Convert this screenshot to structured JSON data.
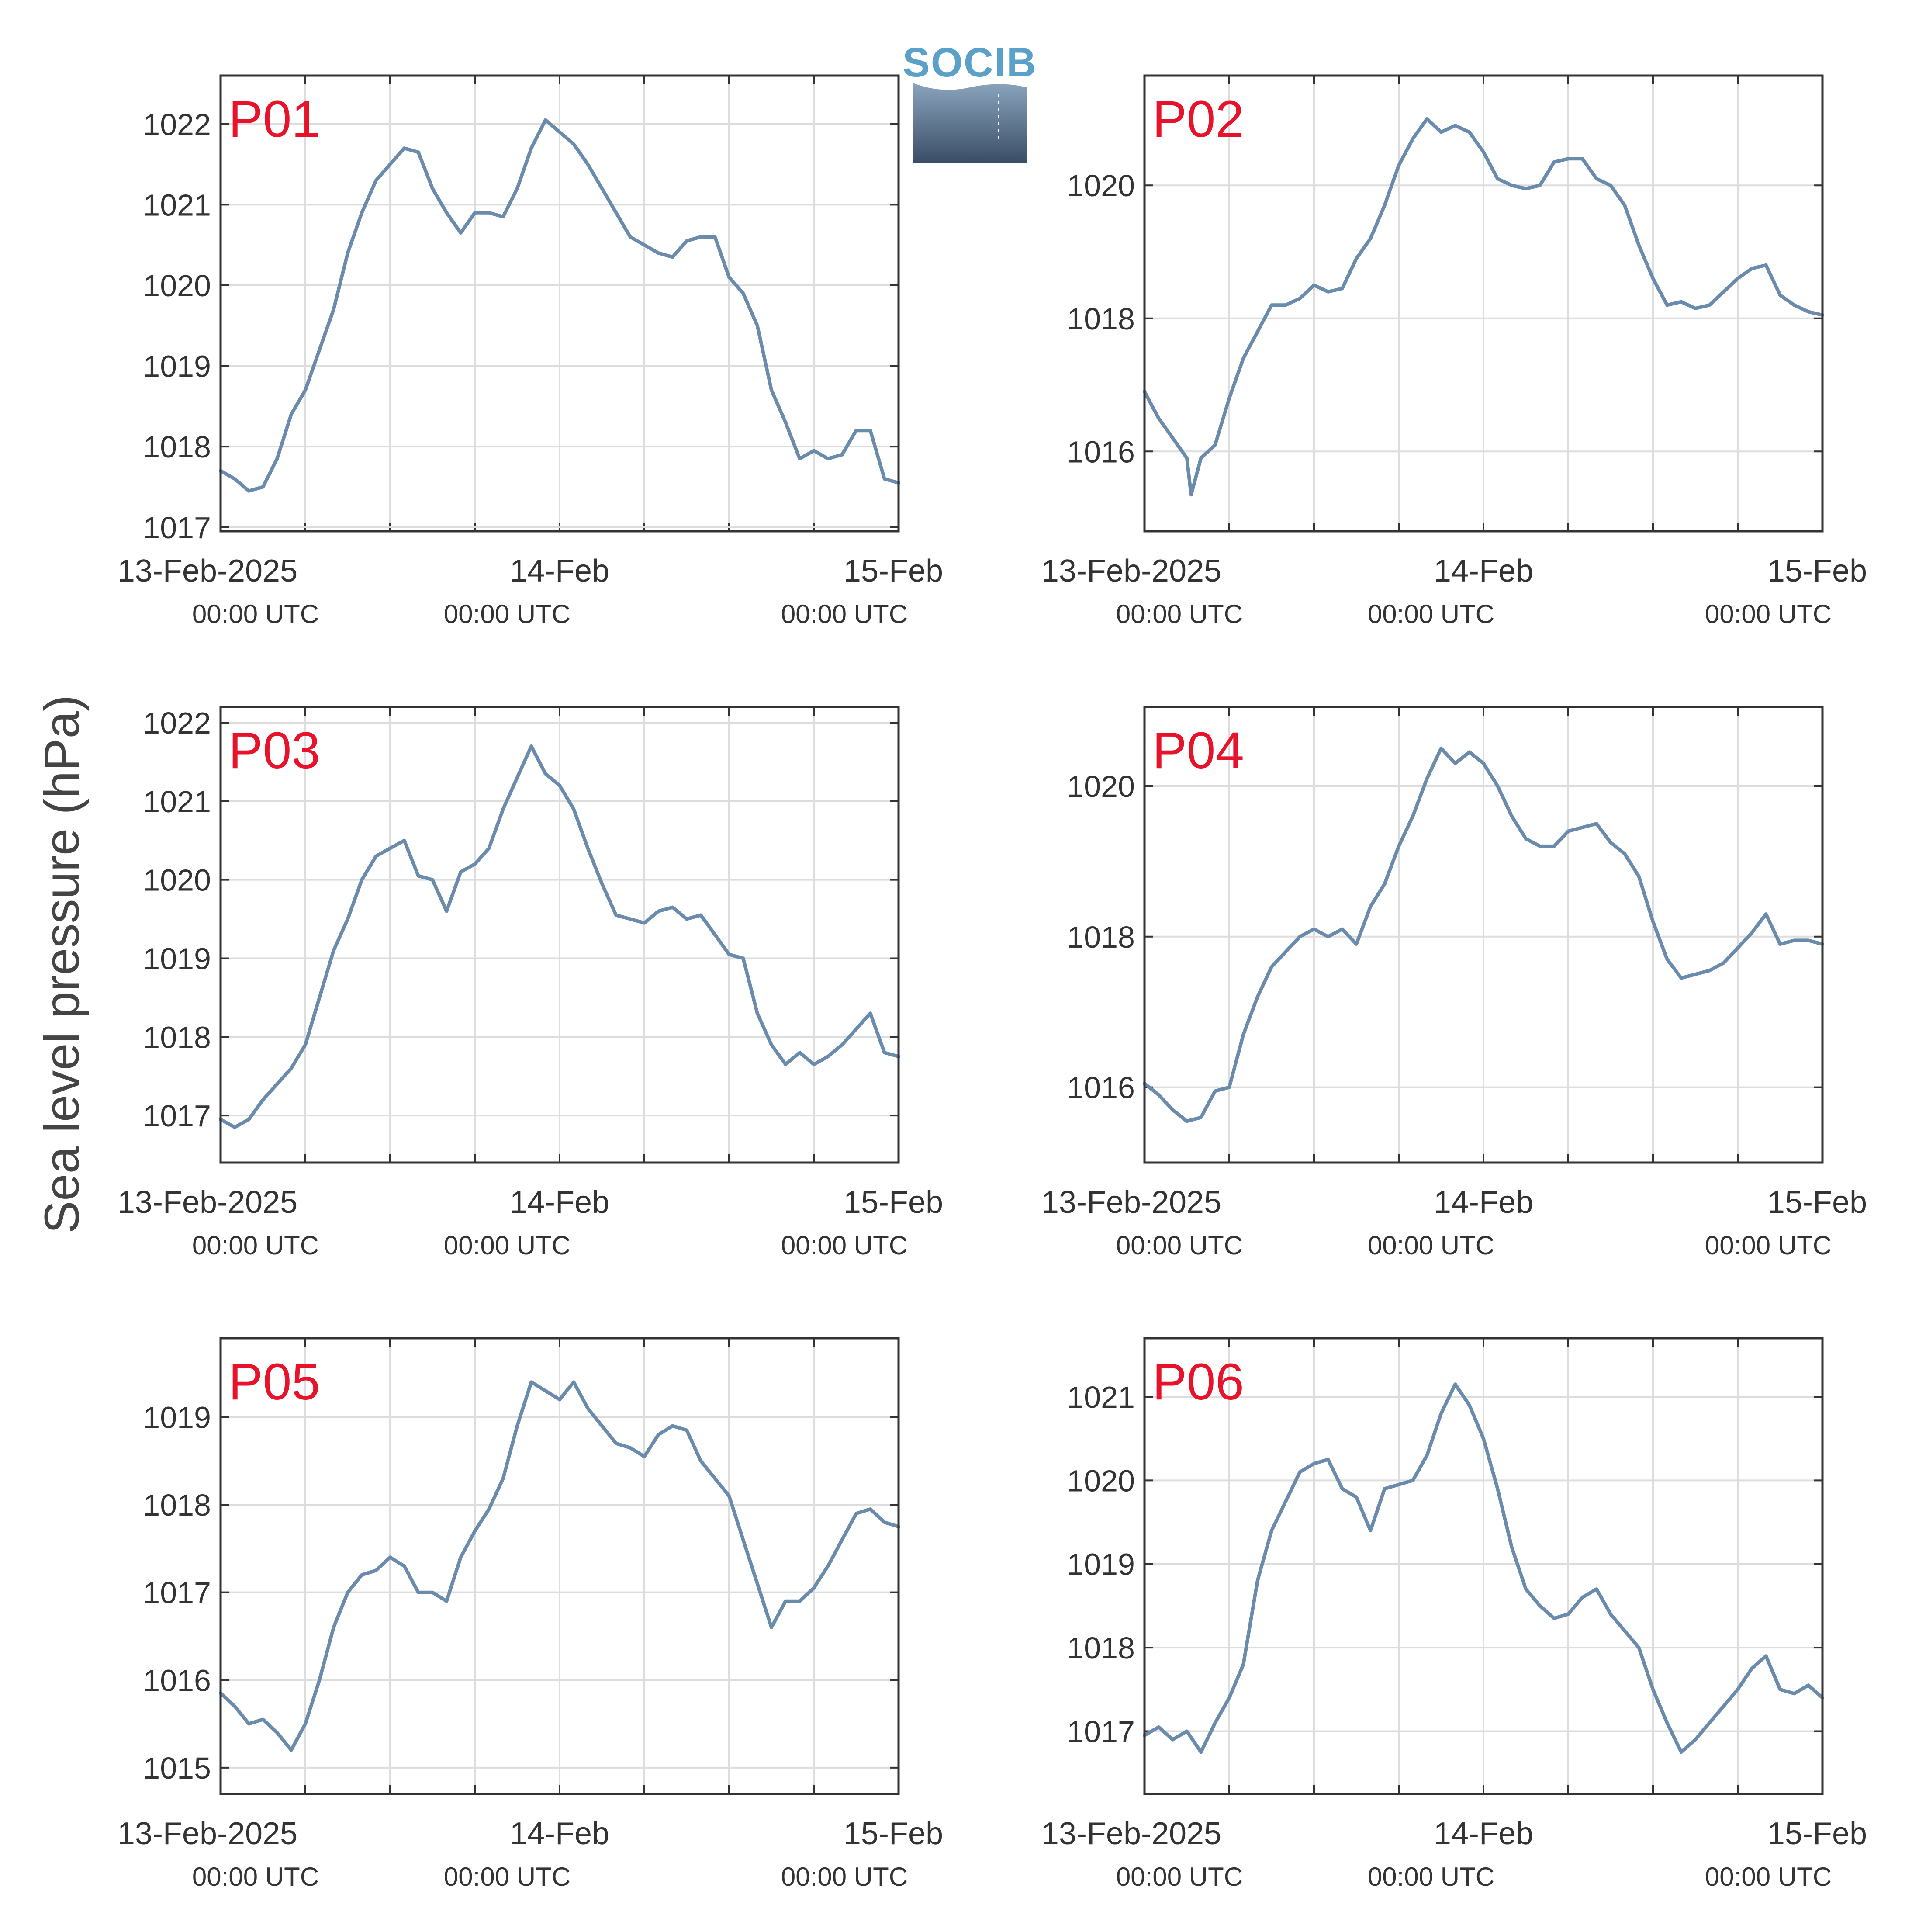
{
  "figure": {
    "ylabel": "Sea level pressure (hPa)",
    "logo_text": "SOCIB",
    "line_color": "#6a8bab",
    "label_color": "#e8132b",
    "grid_color": "#dddddd"
  },
  "chart_data": [
    {
      "type": "line",
      "title": "P01",
      "x_ticks": [
        {
          "date": "13-Feb-2025",
          "time": "00:00 UTC"
        },
        {
          "date": "14-Feb",
          "time": "00:00 UTC"
        },
        {
          "date": "15-Feb",
          "time": "00:00 UTC"
        }
      ],
      "xlim": [
        0,
        48
      ],
      "ylim": [
        1016.95,
        1022.6
      ],
      "yticks": [
        1017,
        1018,
        1019,
        1020,
        1021,
        1022
      ],
      "grid": true,
      "series": [
        {
          "x": [
            0,
            1,
            2,
            3,
            4,
            5,
            6,
            7,
            8,
            9,
            10,
            11,
            12,
            13,
            14,
            15,
            16,
            17,
            18,
            19,
            20,
            21,
            22,
            23,
            24,
            25,
            26,
            27,
            28,
            29,
            30,
            31,
            32,
            33,
            34,
            35,
            36,
            37,
            38,
            39,
            40,
            41,
            42,
            43,
            44,
            45,
            46,
            47,
            48
          ],
          "values": [
            1017.7,
            1017.6,
            1017.45,
            1017.5,
            1017.85,
            1018.4,
            1018.7,
            1019.2,
            1019.7,
            1020.4,
            1020.9,
            1021.3,
            1021.5,
            1021.7,
            1021.65,
            1021.2,
            1020.9,
            1020.65,
            1020.9,
            1020.9,
            1020.85,
            1021.2,
            1021.7,
            1022.05,
            1021.9,
            1021.75,
            1021.5,
            1021.2,
            1020.9,
            1020.6,
            1020.5,
            1020.4,
            1020.35,
            1020.55,
            1020.6,
            1020.6,
            1020.1,
            1019.9,
            1019.5,
            1018.7,
            1018.3,
            1017.85,
            1017.95,
            1017.85,
            1017.9,
            1018.2,
            1018.2,
            1017.6,
            1017.55
          ]
        }
      ]
    },
    {
      "type": "line",
      "title": "P02",
      "x_ticks": [
        {
          "date": "13-Feb-2025",
          "time": "00:00 UTC"
        },
        {
          "date": "14-Feb",
          "time": "00:00 UTC"
        },
        {
          "date": "15-Feb",
          "time": "00:00 UTC"
        }
      ],
      "xlim": [
        0,
        48
      ],
      "ylim": [
        1014.8,
        1021.65
      ],
      "yticks": [
        1016,
        1018,
        1020
      ],
      "grid": true,
      "series": [
        {
          "x": [
            0,
            1,
            2,
            3,
            3.3,
            4,
            5,
            6,
            7,
            8,
            9,
            10,
            11,
            12,
            13,
            14,
            15,
            16,
            17,
            18,
            19,
            20,
            21,
            22,
            23,
            24,
            25,
            26,
            27,
            28,
            29,
            30,
            31,
            32,
            33,
            34,
            35,
            36,
            37,
            38,
            39,
            40,
            41,
            42,
            43,
            44,
            45,
            46,
            47,
            48
          ],
          "values": [
            1016.9,
            1016.5,
            1016.2,
            1015.9,
            1015.35,
            1015.9,
            1016.1,
            1016.8,
            1017.4,
            1017.8,
            1018.2,
            1018.2,
            1018.3,
            1018.5,
            1018.4,
            1018.45,
            1018.9,
            1019.2,
            1019.7,
            1020.3,
            1020.7,
            1021.0,
            1020.8,
            1020.9,
            1020.8,
            1020.5,
            1020.1,
            1020.0,
            1019.95,
            1020.0,
            1020.35,
            1020.4,
            1020.4,
            1020.1,
            1020.0,
            1019.7,
            1019.1,
            1018.6,
            1018.2,
            1018.25,
            1018.15,
            1018.2,
            1018.4,
            1018.6,
            1018.75,
            1018.8,
            1018.35,
            1018.2,
            1018.1,
            1018.05
          ]
        }
      ]
    },
    {
      "type": "line",
      "title": "P03",
      "x_ticks": [
        {
          "date": "13-Feb-2025",
          "time": "00:00 UTC"
        },
        {
          "date": "14-Feb",
          "time": "00:00 UTC"
        },
        {
          "date": "15-Feb",
          "time": "00:00 UTC"
        }
      ],
      "xlim": [
        0,
        48
      ],
      "ylim": [
        1016.4,
        1022.2
      ],
      "yticks": [
        1017,
        1018,
        1019,
        1020,
        1021,
        1022
      ],
      "grid": true,
      "series": [
        {
          "x": [
            0,
            1,
            2,
            3,
            4,
            5,
            6,
            7,
            8,
            9,
            10,
            11,
            12,
            13,
            14,
            15,
            16,
            17,
            18,
            19,
            20,
            21,
            22,
            23,
            24,
            25,
            26,
            27,
            28,
            29,
            30,
            31,
            32,
            33,
            34,
            35,
            36,
            37,
            38,
            39,
            40,
            41,
            42,
            43,
            44,
            45,
            46,
            47,
            48
          ],
          "values": [
            1016.95,
            1016.85,
            1016.95,
            1017.2,
            1017.4,
            1017.6,
            1017.9,
            1018.5,
            1019.1,
            1019.5,
            1020.0,
            1020.3,
            1020.4,
            1020.5,
            1020.05,
            1020.0,
            1019.6,
            1020.1,
            1020.2,
            1020.4,
            1020.9,
            1021.3,
            1021.7,
            1021.35,
            1021.2,
            1020.9,
            1020.4,
            1019.95,
            1019.55,
            1019.5,
            1019.45,
            1019.6,
            1019.65,
            1019.5,
            1019.55,
            1019.3,
            1019.05,
            1019.0,
            1018.3,
            1017.9,
            1017.65,
            1017.8,
            1017.65,
            1017.75,
            1017.9,
            1018.1,
            1018.3,
            1017.8,
            1017.75
          ]
        }
      ]
    },
    {
      "type": "line",
      "title": "P04",
      "x_ticks": [
        {
          "date": "13-Feb-2025",
          "time": "00:00 UTC"
        },
        {
          "date": "14-Feb",
          "time": "00:00 UTC"
        },
        {
          "date": "15-Feb",
          "time": "00:00 UTC"
        }
      ],
      "xlim": [
        0,
        48
      ],
      "ylim": [
        1015.0,
        1021.05
      ],
      "yticks": [
        1016,
        1018,
        1020
      ],
      "grid": true,
      "series": [
        {
          "x": [
            0,
            1,
            2,
            3,
            4,
            5,
            6,
            7,
            8,
            9,
            10,
            11,
            12,
            13,
            14,
            15,
            16,
            17,
            18,
            19,
            20,
            21,
            22,
            23,
            24,
            25,
            26,
            27,
            28,
            29,
            30,
            31,
            32,
            33,
            34,
            35,
            36,
            37,
            38,
            39,
            40,
            41,
            42,
            43,
            44,
            45,
            46,
            47,
            48
          ],
          "values": [
            1016.05,
            1015.9,
            1015.7,
            1015.55,
            1015.6,
            1015.95,
            1016.0,
            1016.7,
            1017.2,
            1017.6,
            1017.8,
            1018.0,
            1018.1,
            1018.0,
            1018.1,
            1017.9,
            1018.4,
            1018.7,
            1019.2,
            1019.6,
            1020.1,
            1020.5,
            1020.3,
            1020.45,
            1020.3,
            1020.0,
            1019.6,
            1019.3,
            1019.2,
            1019.2,
            1019.4,
            1019.45,
            1019.5,
            1019.25,
            1019.1,
            1018.8,
            1018.2,
            1017.7,
            1017.45,
            1017.5,
            1017.55,
            1017.65,
            1017.85,
            1018.05,
            1018.3,
            1017.9,
            1017.95,
            1017.95,
            1017.9
          ]
        }
      ]
    },
    {
      "type": "line",
      "title": "P05",
      "x_ticks": [
        {
          "date": "13-Feb-2025",
          "time": "00:00 UTC"
        },
        {
          "date": "14-Feb",
          "time": "00:00 UTC"
        },
        {
          "date": "15-Feb",
          "time": "00:00 UTC"
        }
      ],
      "xlim": [
        0,
        48
      ],
      "ylim": [
        1014.7,
        1019.9
      ],
      "yticks": [
        1015,
        1016,
        1017,
        1018,
        1019
      ],
      "grid": true,
      "series": [
        {
          "x": [
            0,
            1,
            2,
            3,
            4,
            5,
            6,
            7,
            8,
            9,
            10,
            11,
            12,
            13,
            14,
            15,
            16,
            17,
            18,
            19,
            20,
            21,
            22,
            23,
            24,
            25,
            26,
            27,
            28,
            29,
            30,
            31,
            32,
            33,
            34,
            35,
            36,
            37,
            38,
            39,
            40,
            41,
            42,
            43,
            44,
            45,
            46,
            47,
            48
          ],
          "values": [
            1015.85,
            1015.7,
            1015.5,
            1015.55,
            1015.4,
            1015.2,
            1015.5,
            1016.0,
            1016.6,
            1017.0,
            1017.2,
            1017.25,
            1017.4,
            1017.3,
            1017.0,
            1017.0,
            1016.9,
            1017.4,
            1017.7,
            1017.95,
            1018.3,
            1018.9,
            1019.4,
            1019.3,
            1019.2,
            1019.4,
            1019.1,
            1018.9,
            1018.7,
            1018.65,
            1018.55,
            1018.8,
            1018.9,
            1018.85,
            1018.5,
            1018.3,
            1018.1,
            1017.6,
            1017.1,
            1016.6,
            1016.9,
            1016.9,
            1017.05,
            1017.3,
            1017.6,
            1017.9,
            1017.95,
            1017.8,
            1017.75
          ]
        }
      ]
    },
    {
      "type": "line",
      "title": "P06",
      "x_ticks": [
        {
          "date": "13-Feb-2025",
          "time": "00:00 UTC"
        },
        {
          "date": "14-Feb",
          "time": "00:00 UTC"
        },
        {
          "date": "15-Feb",
          "time": "00:00 UTC"
        }
      ],
      "xlim": [
        0,
        48
      ],
      "ylim": [
        1016.25,
        1021.7
      ],
      "yticks": [
        1017,
        1018,
        1019,
        1020,
        1021
      ],
      "grid": true,
      "series": [
        {
          "x": [
            0,
            1,
            2,
            3,
            4,
            5,
            6,
            7,
            8,
            9,
            10,
            11,
            12,
            13,
            14,
            15,
            16,
            17,
            18,
            19,
            20,
            21,
            22,
            23,
            24,
            25,
            26,
            27,
            28,
            29,
            30,
            31,
            32,
            33,
            34,
            35,
            36,
            37,
            38,
            39,
            40,
            41,
            42,
            43,
            44,
            45,
            46,
            47,
            48
          ],
          "values": [
            1016.95,
            1017.05,
            1016.9,
            1017.0,
            1016.75,
            1017.1,
            1017.4,
            1017.8,
            1018.8,
            1019.4,
            1019.75,
            1020.1,
            1020.2,
            1020.25,
            1019.9,
            1019.8,
            1019.4,
            1019.9,
            1019.95,
            1020.0,
            1020.3,
            1020.8,
            1021.15,
            1020.9,
            1020.5,
            1019.9,
            1019.2,
            1018.7,
            1018.5,
            1018.35,
            1018.4,
            1018.6,
            1018.7,
            1018.4,
            1018.2,
            1018.0,
            1017.5,
            1017.1,
            1016.75,
            1016.9,
            1017.1,
            1017.3,
            1017.5,
            1017.75,
            1017.9,
            1017.5,
            1017.45,
            1017.55,
            1017.4
          ]
        }
      ]
    }
  ]
}
